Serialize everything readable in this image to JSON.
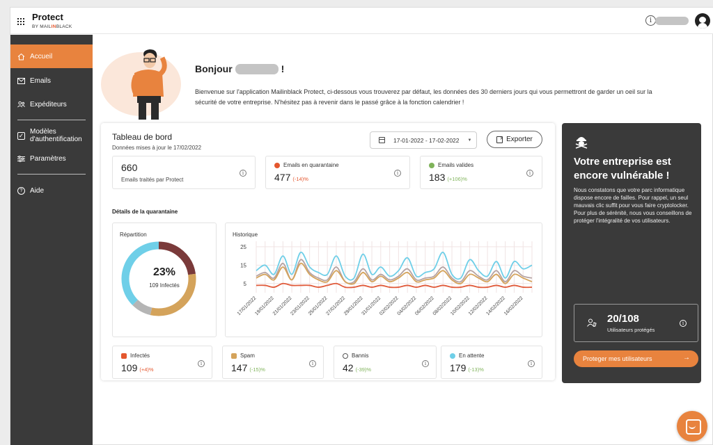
{
  "header": {
    "brand": "Protect",
    "brand_sub_prefix": "BY MAIL",
    "brand_sub_highlight": "IN",
    "brand_sub_suffix": "BLACK",
    "info_glyph": "i"
  },
  "sidebar": {
    "items": [
      {
        "label": "Accueil",
        "icon": "home-icon",
        "active": true
      },
      {
        "label": "Emails",
        "icon": "mail-icon"
      },
      {
        "label": "Expéditeurs",
        "icon": "users-icon"
      },
      {
        "label": "Modèles d'authentification",
        "icon": "template-icon"
      },
      {
        "label": "Paramètres",
        "icon": "sliders-icon"
      },
      {
        "label": "Aide",
        "icon": "help-icon"
      }
    ]
  },
  "hero": {
    "greeting": "Bonjour",
    "greeting_suffix": "!",
    "intro": "Bienvenue sur l'application Mailinblack Protect, ci-dessous vous trouverez par défaut, les données des 30 derniers jours qui vous permettront de garder un oeil sur la sécurité de votre entreprise. N'hésitez pas à revenir dans le passé grâce à la fonction calendrier !"
  },
  "dashboard": {
    "title": "Tableau de bord",
    "updated": "Données mises à jour le 17/02/2022",
    "date_range": "17-01-2022 - 17-02-2022",
    "export_label": "Exporter",
    "kpis": {
      "processed": {
        "value": "660",
        "label": "Emails traités par Protect"
      },
      "quarantine": {
        "label": "Emails en quarantaine",
        "value": "477",
        "delta": "(-14)%",
        "color": "#e4572e"
      },
      "valid": {
        "label": "Emails valides",
        "value": "183",
        "delta": "(+106)%",
        "color": "#7fb35a"
      }
    },
    "quarantine_title": "Détails de la quarantaine",
    "repartition": {
      "title": "Répartition",
      "percent": "23%",
      "sub": "109 Infectés"
    },
    "history_title": "Historique",
    "stats": [
      {
        "label": "Infectés",
        "value": "109",
        "delta": "(+4)%",
        "delta_color": "red",
        "icon": "virus-icon"
      },
      {
        "label": "Spam",
        "value": "147",
        "delta": "(-15)%",
        "delta_color": "green",
        "icon": "spam-icon"
      },
      {
        "label": "Bannis",
        "value": "42",
        "delta": "(-39)%",
        "delta_color": "green",
        "icon": "banned-icon"
      },
      {
        "label": "En attente",
        "value": "179",
        "delta": "(-13)%",
        "delta_color": "green",
        "icon": "drop-icon"
      }
    ]
  },
  "chart_data": {
    "type": "line",
    "x": [
      "17/01/2022",
      "18/01/2022",
      "19/01/2022",
      "20/01/2022",
      "21/01/2022",
      "22/01/2022",
      "23/01/2022",
      "24/01/2022",
      "25/01/2022",
      "26/01/2022",
      "27/01/2022",
      "28/01/2022",
      "29/01/2022",
      "30/01/2022",
      "31/01/2022",
      "01/02/2022",
      "02/02/2022",
      "03/02/2022",
      "04/02/2022",
      "05/02/2022",
      "06/02/2022",
      "07/02/2022",
      "08/02/2022",
      "09/02/2022",
      "10/02/2022",
      "11/02/2022",
      "12/02/2022",
      "13/02/2022",
      "14/02/2022",
      "15/02/2022",
      "16/02/2022",
      "17/02/2022"
    ],
    "tick_labels": [
      "17/01/2022",
      "19/01/2022",
      "21/01/2022",
      "23/01/2022",
      "25/01/2022",
      "27/01/2022",
      "29/01/2022",
      "31/01/2022",
      "02/02/2022",
      "04/02/2022",
      "06/02/2022",
      "08/02/2022",
      "10/02/2022",
      "12/02/2022",
      "14/02/2022",
      "16/02/2022"
    ],
    "yticks": [
      5,
      15,
      25
    ],
    "ylim": [
      0,
      28
    ],
    "grid": true,
    "series": [
      {
        "color": "#6fcfe8",
        "values": [
          12,
          15,
          10,
          20,
          10,
          22,
          14,
          11,
          10,
          20,
          9,
          8,
          21,
          10,
          14,
          9,
          12,
          19,
          9,
          11,
          13,
          22,
          10,
          8,
          18,
          12,
          9,
          17,
          8,
          17,
          13,
          15
        ]
      },
      {
        "color": "#b5a3a3",
        "values": [
          9,
          11,
          8,
          16,
          7,
          18,
          11,
          8,
          7,
          14,
          6,
          6,
          13,
          7,
          10,
          7,
          9,
          13,
          7,
          8,
          9,
          14,
          8,
          6,
          12,
          9,
          7,
          12,
          6,
          12,
          9,
          8
        ]
      },
      {
        "color": "#d4a35b",
        "values": [
          8,
          10,
          7,
          14,
          7,
          16,
          10,
          7,
          6,
          12,
          6,
          5,
          11,
          6,
          9,
          6,
          8,
          11,
          6,
          7,
          8,
          12,
          7,
          5,
          10,
          8,
          6,
          10,
          5,
          10,
          8,
          6
        ]
      },
      {
        "color": "#e05a3a",
        "values": [
          4,
          4,
          3,
          5,
          4,
          4,
          4,
          3,
          4,
          5,
          3,
          3,
          4,
          3,
          4,
          3,
          3,
          4,
          3,
          4,
          3,
          4,
          3,
          3,
          4,
          3,
          3,
          4,
          3,
          4,
          3,
          3
        ]
      }
    ],
    "donut": [
      {
        "name": "Infectés",
        "value": 109,
        "color": "#7a3a3a"
      },
      {
        "name": "Spam",
        "value": 147,
        "color": "#d4a35b"
      },
      {
        "name": "Bannis",
        "value": 42,
        "color": "#b5b5b5"
      },
      {
        "name": "En attente",
        "value": 179,
        "color": "#6fcfe8"
      }
    ]
  },
  "promo": {
    "title": "Votre entreprise est encore vulnérable !",
    "text": "Nous constatons que votre parc informatique dispose encore de failles. Pour rappel, un seul mauvais clic suffit pour vous faire cryptolocker. Pour plus de sérénité, nous vous conseillons de protéger l'intégralité de vos utilisateurs.",
    "count": "20/108",
    "count_label": "Utilisateurs protégés",
    "cta": "Proteger mes utilisateurs",
    "cta_arrow": "→"
  }
}
